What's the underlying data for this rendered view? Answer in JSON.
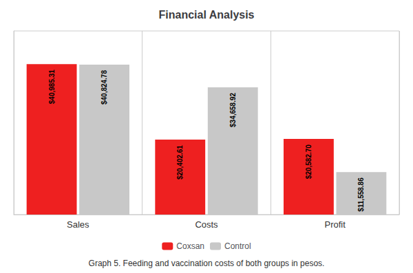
{
  "chart_data": {
    "type": "bar",
    "title": "Financial Analysis",
    "categories": [
      "Sales",
      "Costs",
      "Profit"
    ],
    "series": [
      {
        "name": "Coxsan",
        "color": "#EE2020",
        "values": [
          40985.31,
          20402.61,
          20582.7
        ],
        "value_labels": [
          "$40,985.31",
          "$20,402.61",
          "$20,582.70"
        ]
      },
      {
        "name": "Control",
        "color": "#C8C8C8",
        "values": [
          40824.78,
          34658.92,
          11558.86
        ],
        "value_labels": [
          "$40,824.78",
          "$34,658.92",
          "$11,558.86"
        ]
      }
    ],
    "ylim": [
      0,
      50000
    ],
    "data_labels": true,
    "tick_labels": "x",
    "grid": false,
    "legend": "bottom",
    "annotations": [
      "Graph 5. Feeding and vaccination costs of both groups in pesos."
    ]
  }
}
